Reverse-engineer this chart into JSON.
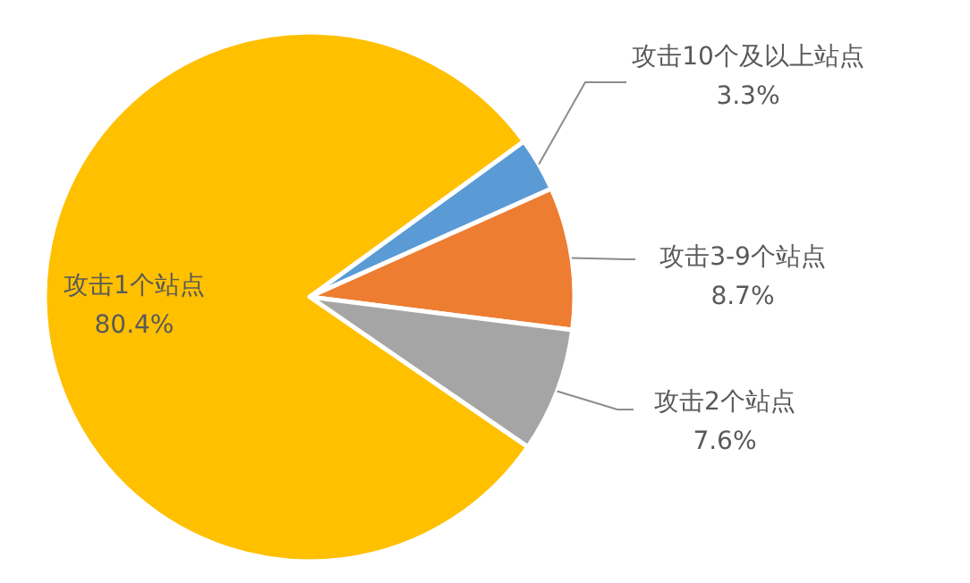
{
  "chart_data": {
    "type": "pie",
    "categories": [
      "攻击10个及以上站点",
      "攻击3-9个站点",
      "攻击2个站点",
      "攻击1个站点"
    ],
    "values": [
      3.3,
      8.7,
      7.6,
      80.4
    ],
    "value_labels": [
      "3.3%",
      "8.7%",
      "7.6%",
      "80.4%"
    ],
    "colors": [
      "#5b9bd5",
      "#ed7d31",
      "#a5a5a5",
      "#ffc000"
    ],
    "legend": false
  }
}
